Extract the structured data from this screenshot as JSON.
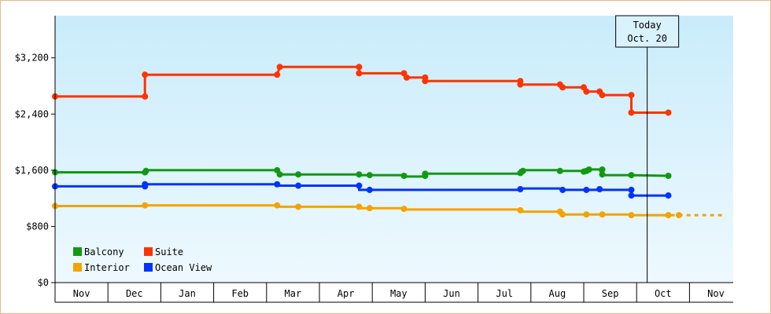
{
  "chart_data": {
    "type": "line",
    "ylim": [
      0,
      3800
    ],
    "y_ticks": [
      0,
      800,
      1600,
      2400,
      3200
    ],
    "y_tick_labels": [
      "$0",
      "$800",
      "$1,600",
      "$2,400",
      "$3,200"
    ],
    "months": [
      "Nov",
      "Dec",
      "Jan",
      "Feb",
      "Mar",
      "Apr",
      "May",
      "Jun",
      "Jul",
      "Aug",
      "Sep",
      "Oct",
      "Nov"
    ],
    "today_marker": {
      "line1": "Today",
      "line2": "Oct. 20",
      "x": 11.2
    },
    "projection": {
      "series": "Interior",
      "from_x": 11.2,
      "to_x": 12.65,
      "value": 960,
      "color": "#f5a300"
    },
    "legend_placement": "bottom-left",
    "series": [
      {
        "name": "Suite",
        "color": "#ff3300",
        "steps": [
          [
            0,
            2650
          ],
          [
            1.7,
            2650
          ],
          [
            1.7,
            2960
          ],
          [
            4.2,
            2960
          ],
          [
            4.25,
            3070
          ],
          [
            5.75,
            3070
          ],
          [
            5.75,
            2980
          ],
          [
            6.6,
            2980
          ],
          [
            6.65,
            2920
          ],
          [
            7.0,
            2920
          ],
          [
            7.0,
            2870
          ],
          [
            8.8,
            2870
          ],
          [
            8.8,
            2820
          ],
          [
            9.55,
            2820
          ],
          [
            9.6,
            2780
          ],
          [
            10.0,
            2780
          ],
          [
            10.05,
            2720
          ],
          [
            10.3,
            2720
          ],
          [
            10.35,
            2670
          ],
          [
            10.9,
            2670
          ],
          [
            10.9,
            2420
          ],
          [
            11.6,
            2420
          ]
        ],
        "points": [
          [
            0,
            2650
          ],
          [
            1.7,
            2650
          ],
          [
            1.7,
            2960
          ],
          [
            4.2,
            2960
          ],
          [
            4.25,
            3070
          ],
          [
            5.75,
            3070
          ],
          [
            5.75,
            2980
          ],
          [
            6.6,
            2980
          ],
          [
            6.65,
            2920
          ],
          [
            7.0,
            2920
          ],
          [
            7.0,
            2870
          ],
          [
            8.8,
            2870
          ],
          [
            8.8,
            2820
          ],
          [
            9.55,
            2820
          ],
          [
            9.6,
            2780
          ],
          [
            10.0,
            2780
          ],
          [
            10.05,
            2720
          ],
          [
            10.3,
            2720
          ],
          [
            10.35,
            2670
          ],
          [
            10.9,
            2670
          ],
          [
            10.9,
            2420
          ],
          [
            11.6,
            2420
          ]
        ]
      },
      {
        "name": "Balcony",
        "color": "#119911",
        "steps": [
          [
            0,
            1570
          ],
          [
            1.7,
            1570
          ],
          [
            1.7,
            1600
          ],
          [
            4.2,
            1600
          ],
          [
            4.25,
            1540
          ],
          [
            5.75,
            1540
          ],
          [
            5.75,
            1530
          ],
          [
            6.6,
            1530
          ],
          [
            6.65,
            1510
          ],
          [
            7.0,
            1510
          ],
          [
            7.0,
            1550
          ],
          [
            8.8,
            1550
          ],
          [
            8.8,
            1600
          ],
          [
            9.55,
            1600
          ],
          [
            9.6,
            1590
          ],
          [
            10.0,
            1590
          ],
          [
            10.05,
            1610
          ],
          [
            10.3,
            1610
          ],
          [
            10.35,
            1530
          ],
          [
            10.9,
            1530
          ],
          [
            11.6,
            1520
          ]
        ],
        "points": [
          [
            0,
            1570
          ],
          [
            1.7,
            1570
          ],
          [
            1.72,
            1590
          ],
          [
            4.2,
            1600
          ],
          [
            4.25,
            1540
          ],
          [
            4.6,
            1540
          ],
          [
            5.75,
            1540
          ],
          [
            5.95,
            1530
          ],
          [
            6.6,
            1520
          ],
          [
            7.0,
            1520
          ],
          [
            7.0,
            1550
          ],
          [
            8.8,
            1560
          ],
          [
            8.85,
            1590
          ],
          [
            9.55,
            1590
          ],
          [
            10.0,
            1580
          ],
          [
            10.05,
            1590
          ],
          [
            10.1,
            1610
          ],
          [
            10.35,
            1610
          ],
          [
            10.35,
            1540
          ],
          [
            10.9,
            1530
          ],
          [
            11.6,
            1520
          ]
        ]
      },
      {
        "name": "Ocean View",
        "color": "#0033ff",
        "steps": [
          [
            0,
            1370
          ],
          [
            1.7,
            1370
          ],
          [
            1.7,
            1400
          ],
          [
            4.2,
            1400
          ],
          [
            4.25,
            1380
          ],
          [
            5.75,
            1380
          ],
          [
            5.75,
            1320
          ],
          [
            8.8,
            1320
          ],
          [
            8.8,
            1340
          ],
          [
            9.55,
            1340
          ],
          [
            9.6,
            1320
          ],
          [
            10.9,
            1320
          ],
          [
            10.9,
            1240
          ],
          [
            11.6,
            1240
          ]
        ],
        "points": [
          [
            0,
            1370
          ],
          [
            1.7,
            1370
          ],
          [
            1.7,
            1400
          ],
          [
            4.2,
            1400
          ],
          [
            4.6,
            1380
          ],
          [
            5.75,
            1380
          ],
          [
            5.95,
            1320
          ],
          [
            8.8,
            1330
          ],
          [
            9.6,
            1320
          ],
          [
            10.05,
            1320
          ],
          [
            10.3,
            1330
          ],
          [
            10.9,
            1320
          ],
          [
            10.9,
            1240
          ],
          [
            11.6,
            1240
          ]
        ]
      },
      {
        "name": "Interior",
        "color": "#f5a300",
        "steps": [
          [
            0,
            1090
          ],
          [
            1.7,
            1090
          ],
          [
            1.7,
            1100
          ],
          [
            4.2,
            1100
          ],
          [
            4.25,
            1080
          ],
          [
            5.75,
            1080
          ],
          [
            5.75,
            1060
          ],
          [
            6.6,
            1060
          ],
          [
            6.65,
            1040
          ],
          [
            8.8,
            1040
          ],
          [
            8.8,
            1010
          ],
          [
            9.55,
            1010
          ],
          [
            9.6,
            970
          ],
          [
            10.9,
            970
          ],
          [
            10.9,
            960
          ],
          [
            11.6,
            960
          ]
        ],
        "points": [
          [
            0,
            1090
          ],
          [
            1.7,
            1100
          ],
          [
            4.2,
            1100
          ],
          [
            4.6,
            1080
          ],
          [
            5.75,
            1080
          ],
          [
            5.95,
            1060
          ],
          [
            6.6,
            1050
          ],
          [
            8.8,
            1030
          ],
          [
            9.55,
            1010
          ],
          [
            9.6,
            970
          ],
          [
            10.05,
            970
          ],
          [
            10.35,
            970
          ],
          [
            10.9,
            960
          ],
          [
            11.6,
            960
          ],
          [
            11.8,
            960
          ]
        ]
      }
    ],
    "legend": [
      {
        "name": "Balcony",
        "color": "#119911"
      },
      {
        "name": "Suite",
        "color": "#ff3300"
      },
      {
        "name": "Interior",
        "color": "#f5a300"
      },
      {
        "name": "Ocean View",
        "color": "#0033ff"
      }
    ]
  }
}
